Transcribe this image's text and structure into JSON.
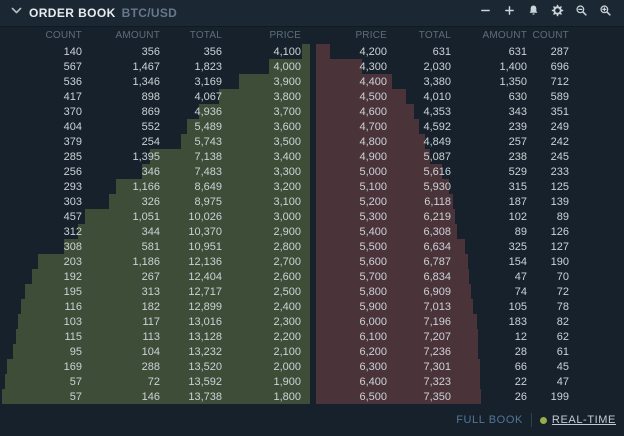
{
  "header": {
    "title": "ORDER BOOK",
    "symbol": "BTC/USD",
    "toolbar_icons": [
      "minus",
      "plus",
      "bell",
      "gear",
      "zoom-out",
      "zoom-in"
    ]
  },
  "book": {
    "bids": {
      "columns": [
        "COUNT",
        "AMOUNT",
        "TOTAL",
        "PRICE"
      ],
      "rows": [
        {
          "count": "140",
          "amount": "356",
          "total": "356",
          "price": "4,100"
        },
        {
          "count": "567",
          "amount": "1,467",
          "total": "1,823",
          "price": "4,000"
        },
        {
          "count": "536",
          "amount": "1,346",
          "total": "3,169",
          "price": "3,900"
        },
        {
          "count": "417",
          "amount": "898",
          "total": "4,067",
          "price": "3,800"
        },
        {
          "count": "370",
          "amount": "869",
          "total": "4,936",
          "price": "3,700"
        },
        {
          "count": "404",
          "amount": "552",
          "total": "5,489",
          "price": "3,600"
        },
        {
          "count": "379",
          "amount": "254",
          "total": "5,743",
          "price": "3,500"
        },
        {
          "count": "285",
          "amount": "1,395",
          "total": "7,138",
          "price": "3,400"
        },
        {
          "count": "256",
          "amount": "346",
          "total": "7,483",
          "price": "3,300"
        },
        {
          "count": "293",
          "amount": "1,166",
          "total": "8,649",
          "price": "3,200"
        },
        {
          "count": "303",
          "amount": "326",
          "total": "8,975",
          "price": "3,100"
        },
        {
          "count": "457",
          "amount": "1,051",
          "total": "10,026",
          "price": "3,000"
        },
        {
          "count": "312",
          "amount": "344",
          "total": "10,370",
          "price": "2,900"
        },
        {
          "count": "308",
          "amount": "581",
          "total": "10,951",
          "price": "2,800"
        },
        {
          "count": "203",
          "amount": "1,186",
          "total": "12,136",
          "price": "2,700"
        },
        {
          "count": "192",
          "amount": "267",
          "total": "12,404",
          "price": "2,600"
        },
        {
          "count": "195",
          "amount": "313",
          "total": "12,717",
          "price": "2,500"
        },
        {
          "count": "116",
          "amount": "182",
          "total": "12,899",
          "price": "2,400"
        },
        {
          "count": "103",
          "amount": "117",
          "total": "13,016",
          "price": "2,300"
        },
        {
          "count": "115",
          "amount": "113",
          "total": "13,128",
          "price": "2,200"
        },
        {
          "count": "95",
          "amount": "104",
          "total": "13,232",
          "price": "2,100"
        },
        {
          "count": "169",
          "amount": "288",
          "total": "13,520",
          "price": "2,000"
        },
        {
          "count": "57",
          "amount": "72",
          "total": "13,592",
          "price": "1,900"
        },
        {
          "count": "57",
          "amount": "146",
          "total": "13,738",
          "price": "1,800"
        }
      ]
    },
    "asks": {
      "columns": [
        "PRICE",
        "TOTAL",
        "AMOUNT",
        "COUNT"
      ],
      "rows": [
        {
          "price": "4,200",
          "total": "631",
          "amount": "631",
          "count": "287"
        },
        {
          "price": "4,300",
          "total": "2,030",
          "amount": "1,400",
          "count": "696"
        },
        {
          "price": "4,400",
          "total": "3,380",
          "amount": "1,350",
          "count": "712"
        },
        {
          "price": "4,500",
          "total": "4,010",
          "amount": "630",
          "count": "589"
        },
        {
          "price": "4,600",
          "total": "4,353",
          "amount": "343",
          "count": "351"
        },
        {
          "price": "4,700",
          "total": "4,592",
          "amount": "239",
          "count": "249"
        },
        {
          "price": "4,800",
          "total": "4,849",
          "amount": "257",
          "count": "242"
        },
        {
          "price": "4,900",
          "total": "5,087",
          "amount": "238",
          "count": "245"
        },
        {
          "price": "5,000",
          "total": "5,616",
          "amount": "529",
          "count": "233"
        },
        {
          "price": "5,100",
          "total": "5,930",
          "amount": "315",
          "count": "125"
        },
        {
          "price": "5,200",
          "total": "6,118",
          "amount": "187",
          "count": "139"
        },
        {
          "price": "5,300",
          "total": "6,219",
          "amount": "102",
          "count": "89"
        },
        {
          "price": "5,400",
          "total": "6,308",
          "amount": "89",
          "count": "126"
        },
        {
          "price": "5,500",
          "total": "6,634",
          "amount": "325",
          "count": "127"
        },
        {
          "price": "5,600",
          "total": "6,787",
          "amount": "154",
          "count": "190"
        },
        {
          "price": "5,700",
          "total": "6,834",
          "amount": "47",
          "count": "70"
        },
        {
          "price": "5,800",
          "total": "6,909",
          "amount": "74",
          "count": "72"
        },
        {
          "price": "5,900",
          "total": "7,013",
          "amount": "105",
          "count": "78"
        },
        {
          "price": "6,000",
          "total": "7,196",
          "amount": "183",
          "count": "82"
        },
        {
          "price": "6,100",
          "total": "7,207",
          "amount": "12",
          "count": "62"
        },
        {
          "price": "6,200",
          "total": "7,236",
          "amount": "28",
          "count": "61"
        },
        {
          "price": "6,300",
          "total": "7,301",
          "amount": "66",
          "count": "45"
        },
        {
          "price": "6,400",
          "total": "7,323",
          "amount": "22",
          "count": "47"
        },
        {
          "price": "6,500",
          "total": "7,350",
          "amount": "26",
          "count": "199"
        }
      ]
    }
  },
  "footer": {
    "full_book": "FULL BOOK",
    "real_time": "REAL-TIME"
  },
  "colors": {
    "bid_bar": "#3d4d38",
    "ask_bar": "#4a343a",
    "realtime_dot": "#9aab49",
    "full_book_text": "#54759a"
  }
}
